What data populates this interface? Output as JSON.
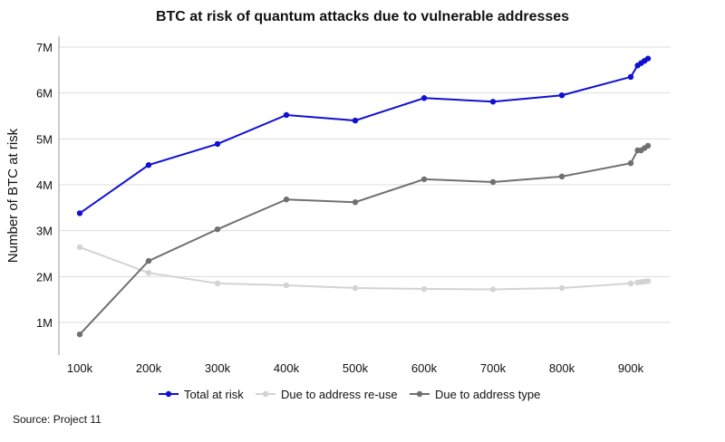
{
  "chart_data": {
    "type": "line",
    "title": "BTC at risk of quantum attacks due to vulnerable addresses",
    "xlabel": "",
    "ylabel": "Number of BTC at risk",
    "x_ticks": [
      "100k",
      "200k",
      "300k",
      "400k",
      "500k",
      "600k",
      "700k",
      "800k",
      "900k"
    ],
    "y_ticks": [
      "1M",
      "2M",
      "3M",
      "4M",
      "5M",
      "6M",
      "7M"
    ],
    "xlim": [
      60000,
      960000
    ],
    "ylim": [
      500000,
      7300000
    ],
    "grid": "horizontal",
    "legend_position": "bottom",
    "x": [
      100000,
      200000,
      300000,
      400000,
      500000,
      600000,
      700000,
      800000,
      900000,
      910000,
      915000,
      920000,
      925000
    ],
    "series": [
      {
        "name": "Total at risk",
        "color": "#1010d0",
        "values": [
          3380000,
          4430000,
          4890000,
          5520000,
          5400000,
          5890000,
          5810000,
          5950000,
          6350000,
          6600000,
          6650000,
          6700000,
          6750000
        ]
      },
      {
        "name": "Due to address re-use",
        "color": "#d3d3d3",
        "values": [
          2640000,
          2080000,
          1850000,
          1810000,
          1750000,
          1730000,
          1720000,
          1750000,
          1850000,
          1870000,
          1880000,
          1890000,
          1900000
        ]
      },
      {
        "name": "Due to address type",
        "color": "#707070",
        "values": [
          740000,
          2340000,
          3030000,
          3680000,
          3620000,
          4120000,
          4060000,
          4180000,
          4470000,
          4750000,
          4750000,
          4800000,
          4850000
        ]
      }
    ]
  },
  "source": "Source: Project 11"
}
